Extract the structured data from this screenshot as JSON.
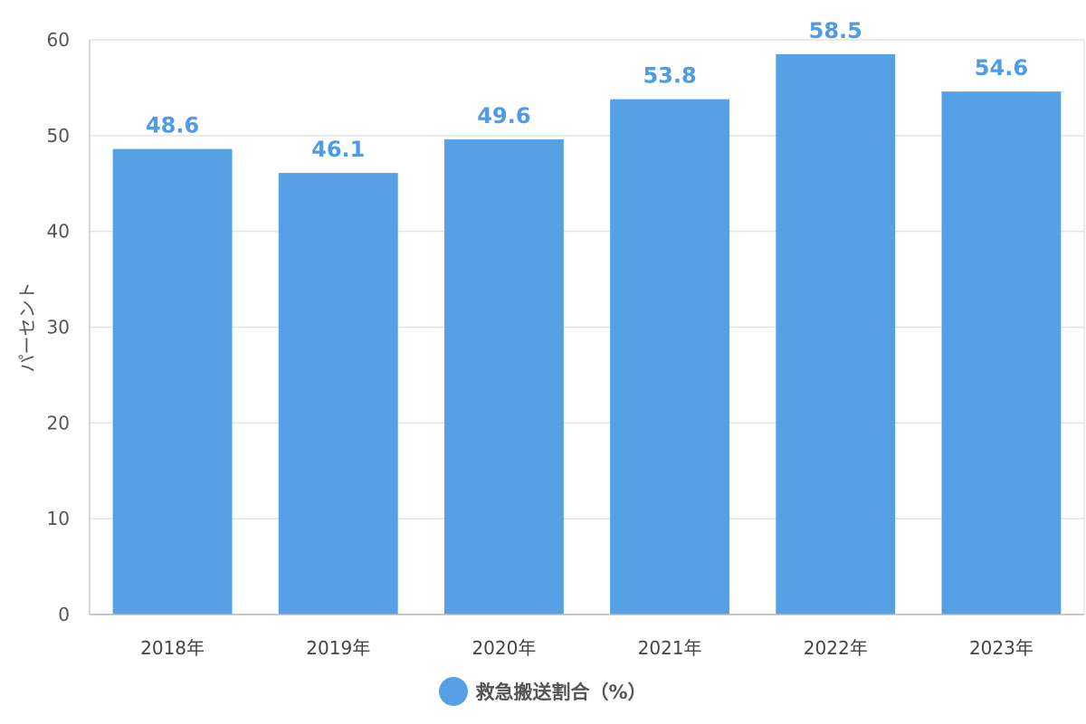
{
  "chart_data": {
    "type": "bar",
    "categories": [
      "2018年",
      "2019年",
      "2020年",
      "2021年",
      "2022年",
      "2023年"
    ],
    "series": [
      {
        "name": "救急搬送割合（%）",
        "values": [
          48.6,
          46.1,
          49.6,
          53.8,
          58.5,
          54.6
        ]
      }
    ],
    "ylabel": "パーセント",
    "ylim": [
      0,
      60
    ],
    "yticks": [
      0,
      10,
      20,
      30,
      40,
      50,
      60
    ],
    "grid": true,
    "data_labels": true,
    "legend_position": "bottom",
    "colors": {
      "bar": "#56a0e5",
      "label": "#4f9be6",
      "grid": "#e3e3e3",
      "axis": "#cccccc"
    }
  }
}
